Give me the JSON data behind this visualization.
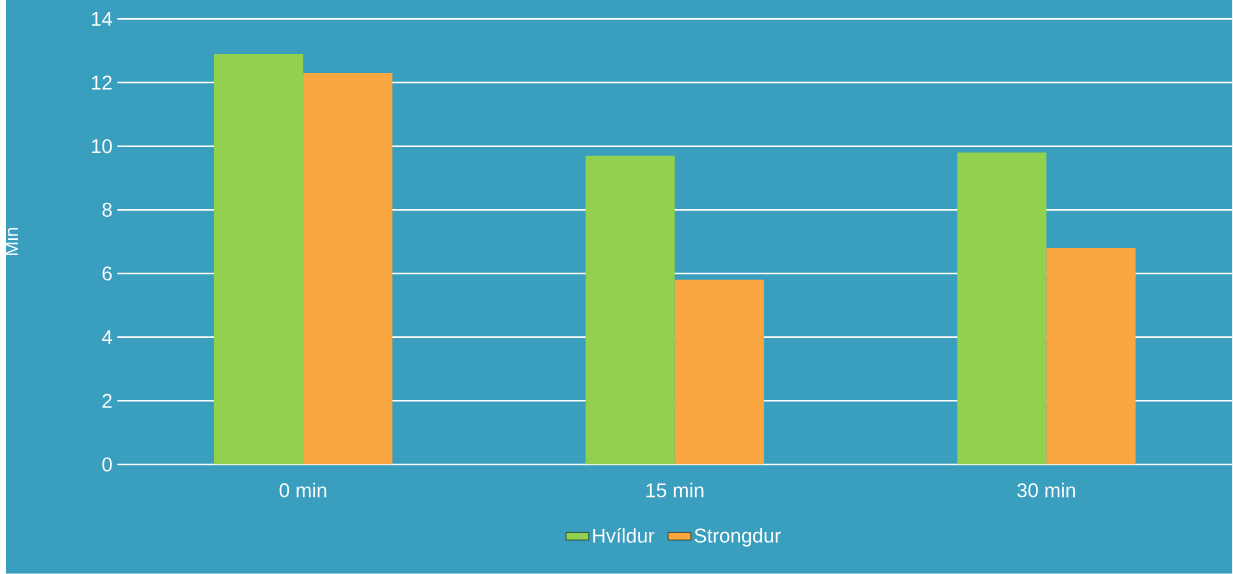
{
  "chart_data": {
    "type": "bar",
    "ylabel": "Min",
    "categories": [
      "0 min",
      "15 min",
      "30 min"
    ],
    "series": [
      {
        "name": "Hvíldur",
        "color": "#92d050",
        "values": [
          12.9,
          9.7,
          9.8
        ]
      },
      {
        "name": "Strongdur",
        "color": "#f9a73e",
        "values": [
          12.3,
          5.8,
          6.8
        ]
      }
    ],
    "ylim": [
      0,
      14
    ],
    "yticks": [
      0,
      2,
      4,
      6,
      8,
      10,
      12,
      14
    ],
    "grid": "y",
    "legend": "bottom"
  }
}
